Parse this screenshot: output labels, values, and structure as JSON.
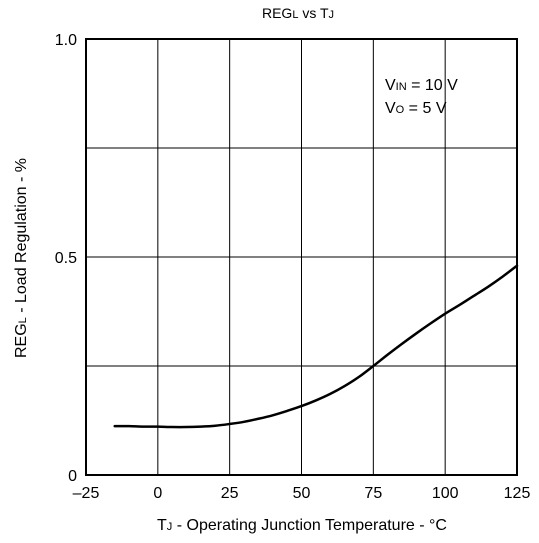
{
  "chart_data": {
    "type": "line",
    "title": {
      "main": "REG",
      "main_sub": "L",
      "mid": " vs T",
      "mid_sub": "J"
    },
    "xlabel": {
      "main": "T",
      "sub": "J",
      "rest": " - Operating Junction Temperature - °C"
    },
    "ylabel": {
      "main": "REG",
      "sub": "L",
      "rest": " - Load Regulation - %"
    },
    "xlim": [
      -25,
      125
    ],
    "ylim": [
      0,
      1.0
    ],
    "x_ticks": [
      -25,
      0,
      25,
      50,
      75,
      100,
      125
    ],
    "x_tick_labels": [
      "–25",
      "0",
      "25",
      "50",
      "75",
      "100",
      "125"
    ],
    "y_ticks": [
      0,
      0.25,
      0.5,
      0.75,
      1.0
    ],
    "y_tick_labels": [
      "0",
      "",
      "0.5",
      "",
      "1.0"
    ],
    "grid": true,
    "annotations": [
      {
        "main": "V",
        "sub": "IN",
        "rest": "  = 10 V"
      },
      {
        "main": "V",
        "sub": "O",
        "rest": "  = 5 V"
      }
    ],
    "series": [
      {
        "color": "#000000",
        "points": [
          [
            -15,
            0.112
          ],
          [
            -10,
            0.112
          ],
          [
            -5,
            0.111
          ],
          [
            0,
            0.111
          ],
          [
            5,
            0.11
          ],
          [
            10,
            0.11
          ],
          [
            15,
            0.111
          ],
          [
            20,
            0.113
          ],
          [
            25,
            0.117
          ],
          [
            30,
            0.122
          ],
          [
            35,
            0.129
          ],
          [
            40,
            0.137
          ],
          [
            45,
            0.147
          ],
          [
            50,
            0.158
          ],
          [
            55,
            0.171
          ],
          [
            60,
            0.186
          ],
          [
            65,
            0.204
          ],
          [
            70,
            0.225
          ],
          [
            75,
            0.25
          ],
          [
            80,
            0.276
          ],
          [
            85,
            0.301
          ],
          [
            90,
            0.325
          ],
          [
            95,
            0.348
          ],
          [
            100,
            0.37
          ],
          [
            105,
            0.39
          ],
          [
            110,
            0.411
          ],
          [
            115,
            0.432
          ],
          [
            120,
            0.455
          ],
          [
            125,
            0.48
          ]
        ]
      }
    ]
  }
}
